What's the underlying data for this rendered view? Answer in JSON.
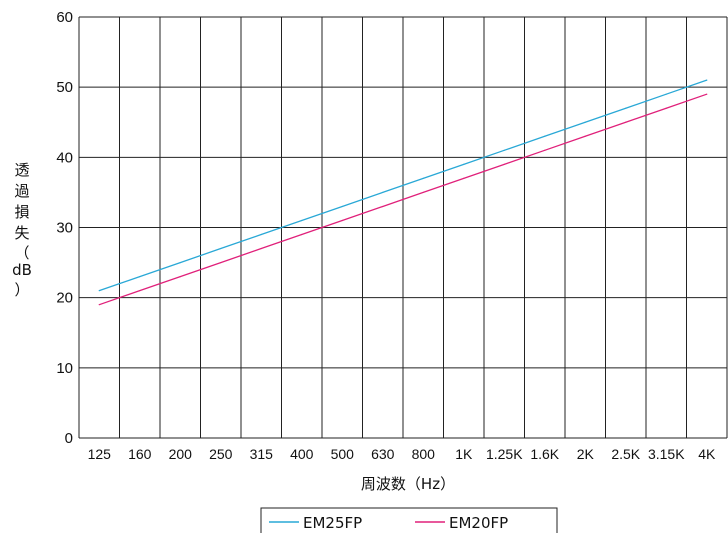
{
  "chart_data": {
    "type": "line",
    "title": "",
    "xlabel": "周波数（Hz）",
    "ylabel": "透過損失（dB）",
    "ylabel_chars": [
      "透",
      "過",
      "損",
      "失",
      "（",
      "dB",
      "）"
    ],
    "categories": [
      "125",
      "160",
      "200",
      "250",
      "315",
      "400",
      "500",
      "630",
      "800",
      "1K",
      "1.25K",
      "1.6K",
      "2K",
      "2.5K",
      "3.15K",
      "4K"
    ],
    "yticks": [
      "0",
      "10",
      "20",
      "30",
      "40",
      "50",
      "60"
    ],
    "ylim": [
      0,
      60
    ],
    "grid": true,
    "legend_position": "bottom-center",
    "series": [
      {
        "name": "EM25FP",
        "color": "#29a8d6",
        "values": [
          21,
          23,
          25,
          27,
          29,
          31,
          33,
          35,
          37,
          39,
          41,
          43,
          45,
          47,
          49,
          51
        ]
      },
      {
        "name": "EM20FP",
        "color": "#e0207a",
        "values": [
          19,
          21,
          23,
          25,
          27,
          29,
          31,
          33,
          35,
          37,
          39,
          41,
          43,
          45,
          47,
          49
        ]
      }
    ]
  }
}
